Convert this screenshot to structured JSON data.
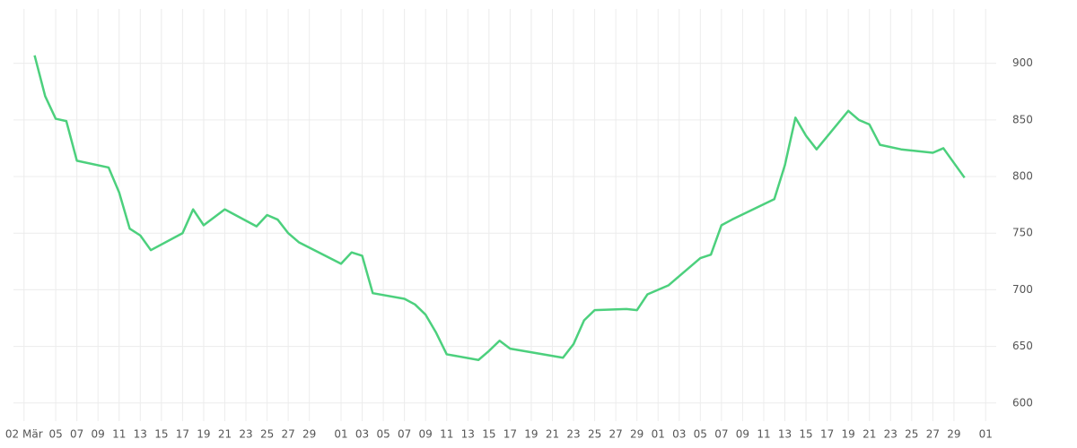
{
  "chart_data": {
    "type": "line",
    "x": [
      1,
      2,
      3,
      4,
      5,
      8,
      9,
      10,
      11,
      12,
      15,
      16,
      17,
      19,
      22,
      23,
      24,
      25,
      26,
      30,
      31,
      32,
      33,
      36,
      37,
      38,
      39,
      40,
      43,
      44,
      45,
      46,
      51,
      52,
      53,
      54,
      57,
      58,
      59,
      61,
      64,
      65,
      66,
      67,
      71,
      72,
      73,
      74,
      75,
      78,
      79,
      80,
      81,
      83,
      86,
      87,
      89
    ],
    "series": [
      {
        "color": "#4cd07d",
        "values": [
          907,
          871,
          851,
          849,
          814,
          808,
          786,
          754,
          748,
          735,
          750,
          771,
          757,
          771,
          756,
          766,
          762,
          750,
          742,
          723,
          733,
          730,
          697,
          692,
          687,
          678,
          662,
          643,
          638,
          646,
          655,
          648,
          640,
          652,
          673,
          682,
          683,
          682,
          696,
          704,
          728,
          731,
          757,
          762,
          780,
          810,
          852,
          836,
          824,
          858,
          850,
          846,
          828,
          824,
          821,
          825,
          799
        ]
      }
    ],
    "xlim": [
      -1,
      92
    ],
    "xticks": [
      {
        "value": 0,
        "label": "02 Mär"
      },
      {
        "value": 3,
        "label": "05"
      },
      {
        "value": 5,
        "label": "07"
      },
      {
        "value": 7,
        "label": "09"
      },
      {
        "value": 9,
        "label": "11"
      },
      {
        "value": 11,
        "label": "13"
      },
      {
        "value": 13,
        "label": "15"
      },
      {
        "value": 15,
        "label": "17"
      },
      {
        "value": 17,
        "label": "19"
      },
      {
        "value": 19,
        "label": "21"
      },
      {
        "value": 21,
        "label": "23"
      },
      {
        "value": 23,
        "label": "25"
      },
      {
        "value": 25,
        "label": "27"
      },
      {
        "value": 27,
        "label": "29"
      },
      {
        "value": 30,
        "label": "01"
      },
      {
        "value": 32,
        "label": "03"
      },
      {
        "value": 34,
        "label": "05"
      },
      {
        "value": 36,
        "label": "07"
      },
      {
        "value": 38,
        "label": "09"
      },
      {
        "value": 40,
        "label": "11"
      },
      {
        "value": 42,
        "label": "13"
      },
      {
        "value": 44,
        "label": "15"
      },
      {
        "value": 46,
        "label": "17"
      },
      {
        "value": 48,
        "label": "19"
      },
      {
        "value": 50,
        "label": "21"
      },
      {
        "value": 52,
        "label": "23"
      },
      {
        "value": 54,
        "label": "25"
      },
      {
        "value": 56,
        "label": "27"
      },
      {
        "value": 58,
        "label": "29"
      },
      {
        "value": 60,
        "label": "01"
      },
      {
        "value": 62,
        "label": "03"
      },
      {
        "value": 64,
        "label": "05"
      },
      {
        "value": 66,
        "label": "07"
      },
      {
        "value": 68,
        "label": "09"
      },
      {
        "value": 70,
        "label": "11"
      },
      {
        "value": 72,
        "label": "13"
      },
      {
        "value": 74,
        "label": "15"
      },
      {
        "value": 76,
        "label": "17"
      },
      {
        "value": 78,
        "label": "19"
      },
      {
        "value": 80,
        "label": "21"
      },
      {
        "value": 82,
        "label": "23"
      },
      {
        "value": 84,
        "label": "25"
      },
      {
        "value": 86,
        "label": "27"
      },
      {
        "value": 88,
        "label": "29"
      },
      {
        "value": 91,
        "label": "01"
      }
    ],
    "ylim": [
      584,
      948
    ],
    "yticks": [
      600,
      650,
      700,
      750,
      800,
      850,
      900
    ],
    "grid": true
  }
}
